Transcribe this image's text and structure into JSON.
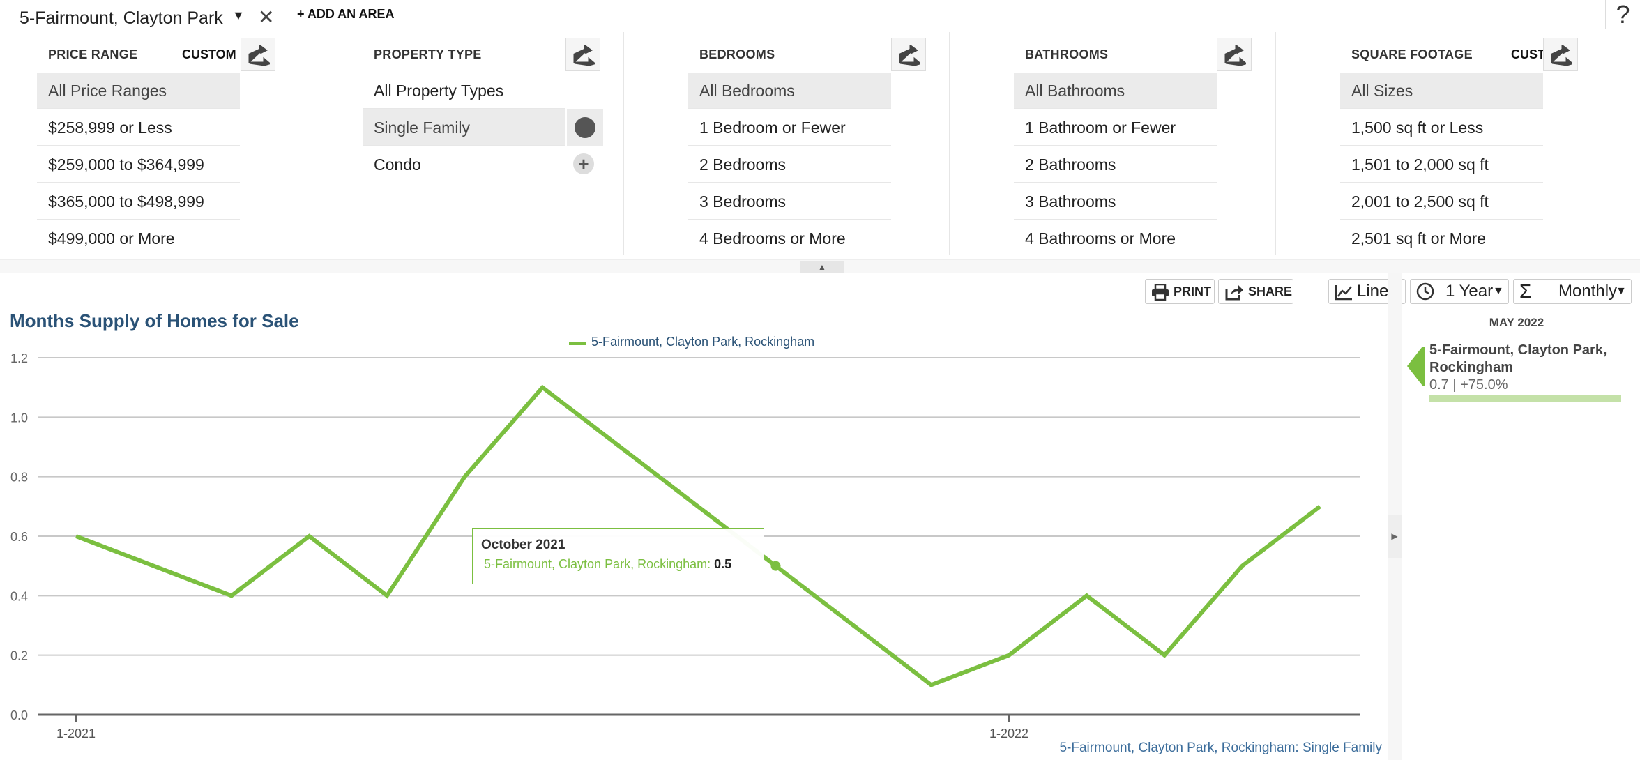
{
  "tabs": {
    "area_name": "5-Fairmount, Clayton Park",
    "add_area": "+ ADD AN AREA",
    "help": "?"
  },
  "filters": {
    "price": {
      "title": "PRICE RANGE",
      "custom": "CUSTOM",
      "options": [
        "All Price Ranges",
        "$258,999 or Less",
        "$259,000 to $364,999",
        "$365,000 to $498,999",
        "$499,000 or More"
      ]
    },
    "property": {
      "title": "PROPERTY TYPE",
      "options": [
        "All Property Types",
        "Single Family",
        "Condo"
      ]
    },
    "bedrooms": {
      "title": "BEDROOMS",
      "options": [
        "All Bedrooms",
        "1 Bedroom or Fewer",
        "2 Bedrooms",
        "3 Bedrooms",
        "4 Bedrooms or More"
      ]
    },
    "bathrooms": {
      "title": "BATHROOMS",
      "options": [
        "All Bathrooms",
        "1 Bathroom or Fewer",
        "2 Bathrooms",
        "3 Bathrooms",
        "4 Bathrooms or More"
      ]
    },
    "sqft": {
      "title": "SQUARE FOOTAGE",
      "custom": "CUSTOM",
      "options": [
        "All Sizes",
        "1,500 sq ft or Less",
        "1,501 to 2,000 sq ft",
        "2,001 to 2,500 sq ft",
        "2,501 sq ft or More"
      ]
    }
  },
  "toolbar": {
    "print": "PRINT",
    "share": "SHARE",
    "chart_type": "Line",
    "period": "1 Year",
    "interval": "Monthly"
  },
  "summary": {
    "month": "MAY 2022",
    "name": "5-Fairmount, Clayton Park, Rockingham",
    "value": "0.7 | +75.0%",
    "fill_fraction": 1.0
  },
  "tooltip": {
    "title": "October 2021",
    "series": "5-Fairmount, Clayton Park, Rockingham:",
    "value": "0.5"
  },
  "footnote": "5-Fairmount, Clayton Park, Rockingham: Single Family",
  "colors": {
    "series": "#7bbf40",
    "title": "#2a5276",
    "grid": "#c8c8c8"
  },
  "chart_data": {
    "type": "line",
    "title": "Months Supply of Homes for Sale",
    "xlabel": "",
    "ylabel": "",
    "x": [
      "2021-01",
      "2021-02",
      "2021-03",
      "2021-04",
      "2021-05",
      "2021-06",
      "2021-07",
      "2021-08",
      "2021-09",
      "2021-10",
      "2021-11",
      "2021-12",
      "2022-01",
      "2022-02",
      "2022-03",
      "2022-04",
      "2022-05"
    ],
    "x_tick_labels": [
      {
        "x": "2021-01",
        "label": "1-2021"
      },
      {
        "x": "2022-01",
        "label": "1-2022"
      }
    ],
    "y_ticks": [
      "0.0",
      "0.2",
      "0.4",
      "0.6",
      "0.8",
      "1.0",
      "1.2"
    ],
    "ylim": [
      0,
      1.2
    ],
    "grid": true,
    "legend": "top-center",
    "series": [
      {
        "name": "5-Fairmount, Clayton Park, Rockingham",
        "values": [
          0.6,
          0.5,
          0.4,
          0.6,
          0.4,
          0.8,
          1.1,
          0.9,
          0.7,
          0.5,
          0.3,
          0.1,
          0.2,
          0.4,
          0.2,
          0.5,
          0.7
        ]
      }
    ],
    "highlight": {
      "x": "2021-10",
      "value": 0.5
    }
  }
}
